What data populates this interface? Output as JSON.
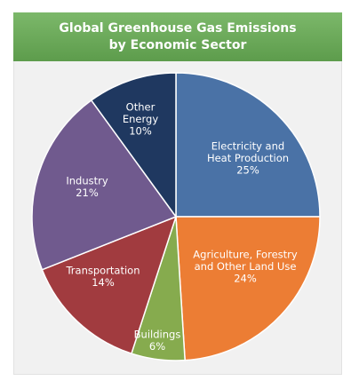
{
  "chart_data": {
    "type": "pie",
    "title": "Global Greenhouse Gas Emissions",
    "subtitle": "by Economic Sector",
    "slices": [
      {
        "label": [
          "Electricity and",
          "Heat Production"
        ],
        "value": 25,
        "display": "25%",
        "color": "#4a72a6"
      },
      {
        "label": [
          "Agriculture, Forestry",
          "and Other Land Use"
        ],
        "value": 24,
        "display": "24%",
        "color": "#ec7d34"
      },
      {
        "label": [
          "Buildings"
        ],
        "value": 6,
        "display": "6%",
        "color": "#86ab4e"
      },
      {
        "label": [
          "Transportation"
        ],
        "value": 14,
        "display": "14%",
        "color": "#a13b3f"
      },
      {
        "label": [
          "Industry"
        ],
        "value": 21,
        "display": "21%",
        "color": "#705a8e"
      },
      {
        "label": [
          "Other",
          "Energy"
        ],
        "value": 10,
        "display": "10%",
        "color": "#1f3860"
      }
    ],
    "start_angle_deg": 0,
    "direction": "clockwise"
  }
}
